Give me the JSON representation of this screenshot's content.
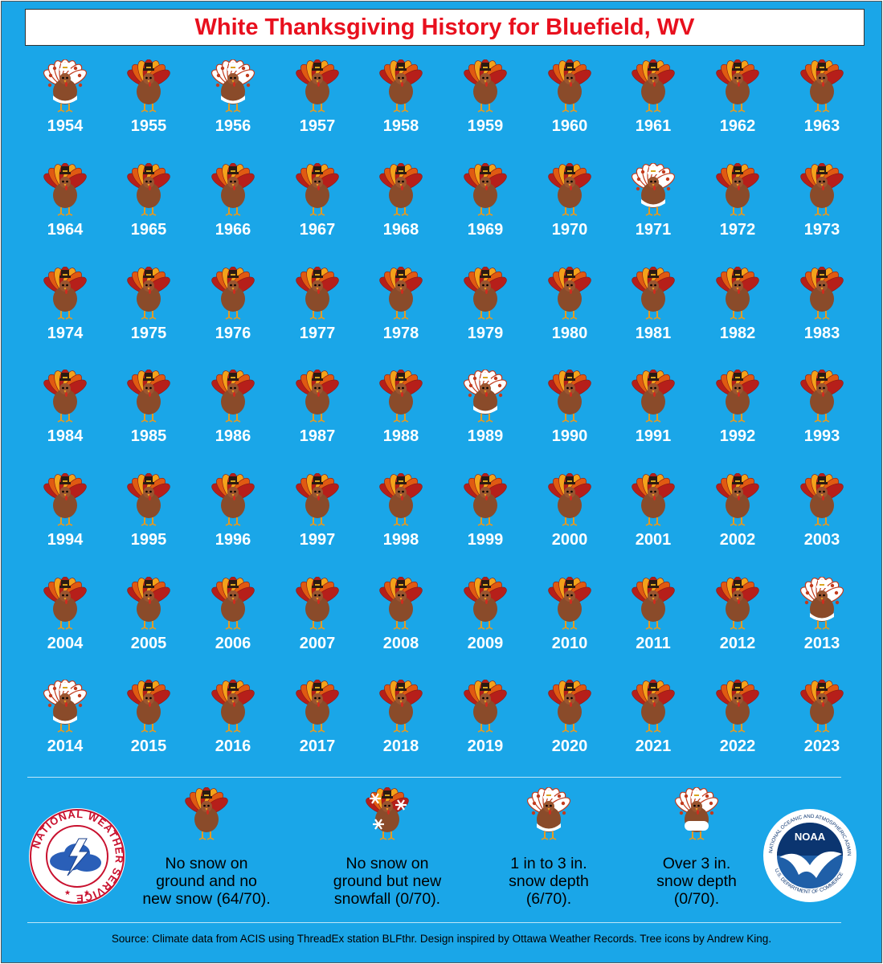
{
  "title": "White Thanksgiving History for Bluefield, WV",
  "categories": {
    "none": "no snow",
    "onecat": "1 in to 3 in. snow depth"
  },
  "years": [
    {
      "year": "1954",
      "cat": "light"
    },
    {
      "year": "1955",
      "cat": "none"
    },
    {
      "year": "1956",
      "cat": "light"
    },
    {
      "year": "1957",
      "cat": "none"
    },
    {
      "year": "1958",
      "cat": "none"
    },
    {
      "year": "1959",
      "cat": "none"
    },
    {
      "year": "1960",
      "cat": "none"
    },
    {
      "year": "1961",
      "cat": "none"
    },
    {
      "year": "1962",
      "cat": "none"
    },
    {
      "year": "1963",
      "cat": "none"
    },
    {
      "year": "1964",
      "cat": "none"
    },
    {
      "year": "1965",
      "cat": "none"
    },
    {
      "year": "1966",
      "cat": "none"
    },
    {
      "year": "1967",
      "cat": "none"
    },
    {
      "year": "1968",
      "cat": "none"
    },
    {
      "year": "1969",
      "cat": "none"
    },
    {
      "year": "1970",
      "cat": "none"
    },
    {
      "year": "1971",
      "cat": "light"
    },
    {
      "year": "1972",
      "cat": "none"
    },
    {
      "year": "1973",
      "cat": "none"
    },
    {
      "year": "1974",
      "cat": "none"
    },
    {
      "year": "1975",
      "cat": "none"
    },
    {
      "year": "1976",
      "cat": "none"
    },
    {
      "year": "1977",
      "cat": "none"
    },
    {
      "year": "1978",
      "cat": "none"
    },
    {
      "year": "1979",
      "cat": "none"
    },
    {
      "year": "1980",
      "cat": "none"
    },
    {
      "year": "1981",
      "cat": "none"
    },
    {
      "year": "1982",
      "cat": "none"
    },
    {
      "year": "1983",
      "cat": "none"
    },
    {
      "year": "1984",
      "cat": "none"
    },
    {
      "year": "1985",
      "cat": "none"
    },
    {
      "year": "1986",
      "cat": "none"
    },
    {
      "year": "1987",
      "cat": "none"
    },
    {
      "year": "1988",
      "cat": "none"
    },
    {
      "year": "1989",
      "cat": "light"
    },
    {
      "year": "1990",
      "cat": "none"
    },
    {
      "year": "1991",
      "cat": "none"
    },
    {
      "year": "1992",
      "cat": "none"
    },
    {
      "year": "1993",
      "cat": "none"
    },
    {
      "year": "1994",
      "cat": "none"
    },
    {
      "year": "1995",
      "cat": "none"
    },
    {
      "year": "1996",
      "cat": "none"
    },
    {
      "year": "1997",
      "cat": "none"
    },
    {
      "year": "1998",
      "cat": "none"
    },
    {
      "year": "1999",
      "cat": "none"
    },
    {
      "year": "2000",
      "cat": "none"
    },
    {
      "year": "2001",
      "cat": "none"
    },
    {
      "year": "2002",
      "cat": "none"
    },
    {
      "year": "2003",
      "cat": "none"
    },
    {
      "year": "2004",
      "cat": "none"
    },
    {
      "year": "2005",
      "cat": "none"
    },
    {
      "year": "2006",
      "cat": "none"
    },
    {
      "year": "2007",
      "cat": "none"
    },
    {
      "year": "2008",
      "cat": "none"
    },
    {
      "year": "2009",
      "cat": "none"
    },
    {
      "year": "2010",
      "cat": "none"
    },
    {
      "year": "2011",
      "cat": "none"
    },
    {
      "year": "2012",
      "cat": "none"
    },
    {
      "year": "2013",
      "cat": "light"
    },
    {
      "year": "2014",
      "cat": "light"
    },
    {
      "year": "2015",
      "cat": "none"
    },
    {
      "year": "2016",
      "cat": "none"
    },
    {
      "year": "2017",
      "cat": "none"
    },
    {
      "year": "2018",
      "cat": "none"
    },
    {
      "year": "2019",
      "cat": "none"
    },
    {
      "year": "2020",
      "cat": "none"
    },
    {
      "year": "2021",
      "cat": "none"
    },
    {
      "year": "2022",
      "cat": "none"
    },
    {
      "year": "2023",
      "cat": "none"
    }
  ],
  "legend": [
    {
      "type": "none",
      "label": "No snow on\nground and no\nnew snow (64/70)."
    },
    {
      "type": "newsnow",
      "label": "No snow on\nground but new\nsnowfall (0/70)."
    },
    {
      "type": "light",
      "label": "1 in to 3 in.\nsnow depth\n(6/70)."
    },
    {
      "type": "heavy",
      "label": "Over 3 in.\nsnow depth\n(0/70)."
    }
  ],
  "logos": {
    "nws_text": "NATIONAL WEATHER SERVICE",
    "noaa_text": "NOAA",
    "noaa_ring_text": "NATIONAL OCEANIC AND ATMOSPHERIC ADMINISTRATION",
    "noaa_ring_text_bottom": "U.S. DEPARTMENT OF COMMERCE"
  },
  "source": "Source: Climate data from ACIS using ThreadEx station BLFthr. Design inspired by Ottawa Weather Records. Tree icons by Andrew King.",
  "colors": {
    "background": "#1aa6e8",
    "title_text": "#e8101e",
    "year_text": "#ffffff"
  }
}
